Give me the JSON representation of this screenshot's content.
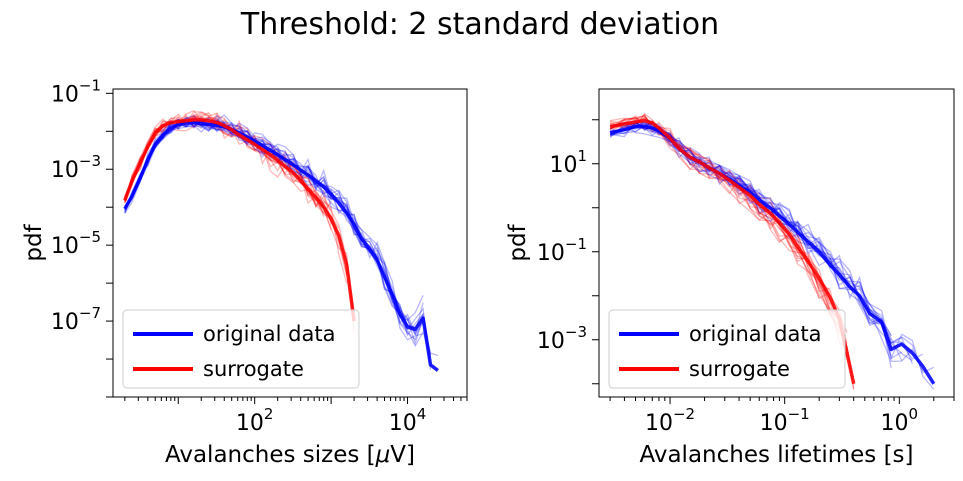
{
  "figure": {
    "suptitle": "Threshold: 2 standard deviation"
  },
  "chart_data": [
    {
      "type": "line",
      "xlabel_prefix": "Avalanches sizes [",
      "xlabel_mu": "μ",
      "xlabel_suffix": "V]",
      "ylabel": "pdf",
      "xscale": "log",
      "yscale": "log",
      "xlim": [
        1.4,
        60000
      ],
      "ylim": [
        1e-09,
        0.13
      ],
      "xticks": [
        {
          "base": "10",
          "exp": "2",
          "value": 100
        },
        {
          "base": "10",
          "exp": "4",
          "value": 10000
        }
      ],
      "yticks": [
        {
          "base": "10",
          "exp": "−1",
          "value": 0.1
        },
        {
          "base": "10",
          "exp": "−3",
          "value": 0.001
        },
        {
          "base": "10",
          "exp": "−5",
          "value": 1e-05
        },
        {
          "base": "10",
          "exp": "−7",
          "value": 1e-07
        }
      ],
      "legend": {
        "position": "lower-left",
        "entries": [
          {
            "label": "original data",
            "color": "#0000ff"
          },
          {
            "label": "surrogate",
            "color": "#ff0000"
          }
        ]
      },
      "series": [
        {
          "name": "original data",
          "color": "#0000ff",
          "x": [
            2,
            2.5,
            3.2,
            4,
            5,
            6.3,
            8,
            10,
            12.6,
            16,
            20,
            25,
            32,
            40,
            50,
            63,
            80,
            100,
            126,
            160,
            200,
            250,
            320,
            400,
            500,
            630,
            800,
            1000,
            1260,
            1600,
            2000,
            2500,
            3200,
            4000,
            5000,
            6300,
            8000,
            10000,
            12600,
            16000,
            20000,
            25000
          ],
          "y": [
            9e-05,
            0.0002,
            0.0006,
            0.0018,
            0.0045,
            0.008,
            0.012,
            0.015,
            0.0165,
            0.0168,
            0.016,
            0.015,
            0.0145,
            0.013,
            0.011,
            0.009,
            0.007,
            0.0055,
            0.0042,
            0.0032,
            0.0024,
            0.0018,
            0.0013,
            0.00095,
            0.0007,
            0.0005,
            0.00034,
            0.00022,
            0.00013,
            7e-05,
            3.5e-05,
            1.5e-05,
            8e-06,
            4e-06,
            1.5e-06,
            5e-07,
            1.5e-07,
            7e-08,
            6e-08,
            1.2e-07,
            7e-09,
            5e-09
          ]
        },
        {
          "name": "surrogate",
          "color": "#ff0000",
          "x": [
            2,
            2.5,
            3.2,
            4,
            5,
            6.3,
            8,
            10,
            12.6,
            16,
            20,
            25,
            32,
            40,
            50,
            63,
            80,
            100,
            126,
            160,
            200,
            250,
            320,
            400,
            500,
            630,
            800,
            1000,
            1260,
            1600,
            2000
          ],
          "y": [
            0.00015,
            0.0005,
            0.0015,
            0.004,
            0.009,
            0.014,
            0.017,
            0.018,
            0.019,
            0.02,
            0.02,
            0.019,
            0.017,
            0.014,
            0.011,
            0.008,
            0.006,
            0.0045,
            0.0033,
            0.0024,
            0.0017,
            0.0012,
            0.0008,
            0.0005,
            0.0003,
            0.00018,
            0.0001,
            5e-05,
            1.8e-05,
            3e-06,
            1e-07
          ]
        }
      ]
    },
    {
      "type": "line",
      "xlabel": "Avalanches lifetimes [s]",
      "ylabel": "pdf",
      "xscale": "log",
      "yscale": "log",
      "xlim": [
        0.0024,
        3.0
      ],
      "ylim": [
        5e-05,
        500
      ],
      "xticks": [
        {
          "base": "10",
          "exp": "−2",
          "value": 0.01
        },
        {
          "base": "10",
          "exp": "−1",
          "value": 0.1
        },
        {
          "base": "10",
          "exp": "0",
          "value": 1
        }
      ],
      "yticks": [
        {
          "base": "10",
          "exp": "1",
          "value": 10
        },
        {
          "base": "10",
          "exp": "−1",
          "value": 0.1
        },
        {
          "base": "10",
          "exp": "−3",
          "value": 0.001
        }
      ],
      "legend": {
        "position": "lower-left",
        "entries": [
          {
            "label": "original data",
            "color": "#0000ff"
          },
          {
            "label": "surrogate",
            "color": "#ff0000"
          }
        ]
      },
      "series": [
        {
          "name": "original data",
          "color": "#0000ff",
          "x": [
            0.003,
            0.004,
            0.005,
            0.006,
            0.007,
            0.008,
            0.01,
            0.012,
            0.015,
            0.018,
            0.022,
            0.027,
            0.033,
            0.04,
            0.05,
            0.06,
            0.075,
            0.09,
            0.11,
            0.13,
            0.16,
            0.2,
            0.25,
            0.3,
            0.37,
            0.45,
            0.55,
            0.7,
            0.85,
            1.05,
            1.3,
            1.6,
            2.0
          ],
          "y": [
            50,
            60,
            70,
            70,
            65,
            55,
            38,
            22,
            14,
            11,
            8,
            6,
            4.5,
            3.2,
            2.2,
            1.5,
            1.0,
            0.65,
            0.42,
            0.28,
            0.17,
            0.1,
            0.05,
            0.03,
            0.016,
            0.01,
            0.004,
            0.0025,
            0.0006,
            0.0008,
            0.0005,
            0.00025,
            0.0001
          ]
        },
        {
          "name": "surrogate",
          "color": "#ff0000",
          "x": [
            0.003,
            0.004,
            0.005,
            0.006,
            0.007,
            0.008,
            0.01,
            0.012,
            0.015,
            0.018,
            0.022,
            0.027,
            0.033,
            0.04,
            0.05,
            0.06,
            0.075,
            0.09,
            0.11,
            0.13,
            0.16,
            0.2,
            0.25,
            0.3,
            0.35,
            0.4
          ],
          "y": [
            70,
            80,
            90,
            95,
            85,
            65,
            38,
            22,
            14,
            11,
            8,
            6,
            4.2,
            2.9,
            1.9,
            1.2,
            0.75,
            0.45,
            0.25,
            0.13,
            0.06,
            0.025,
            0.009,
            0.003,
            0.0005,
            0.0001
          ]
        }
      ]
    }
  ]
}
